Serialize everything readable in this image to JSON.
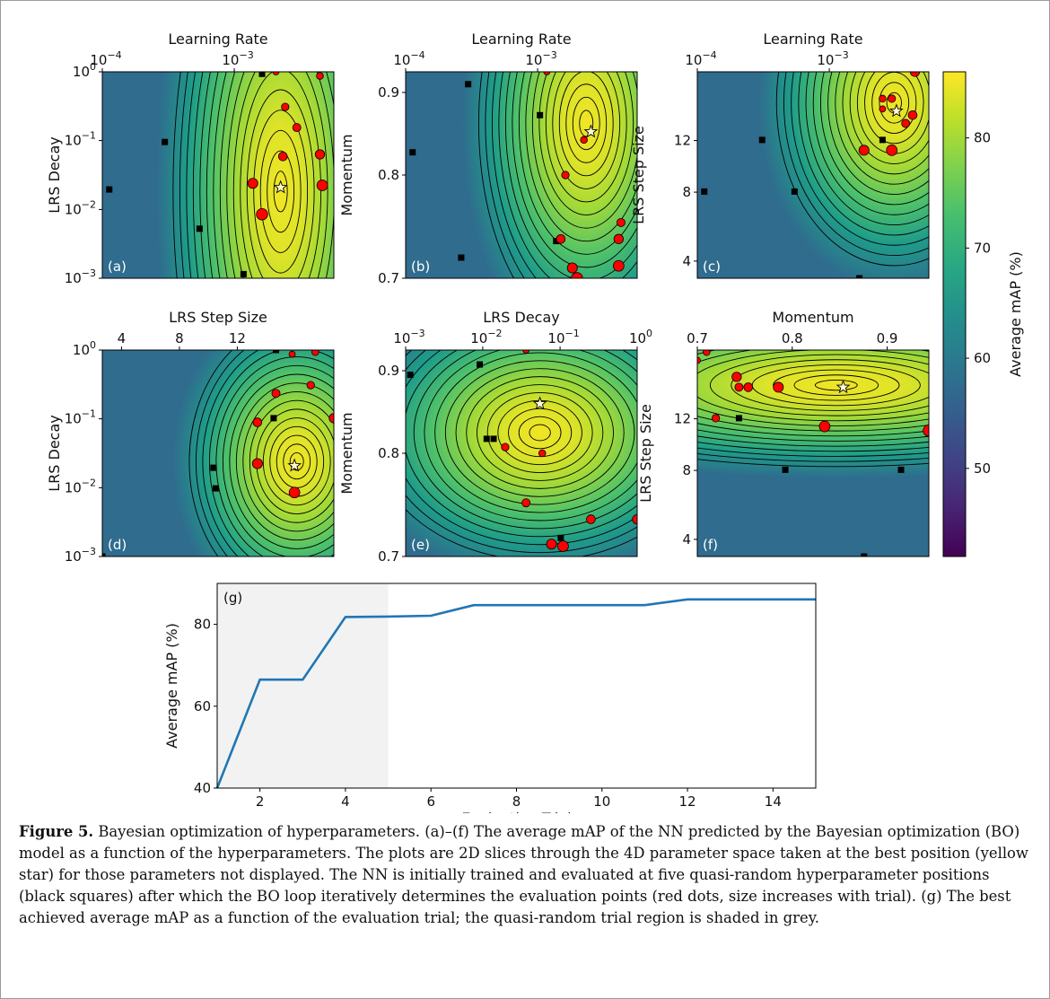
{
  "colors": {
    "low": "#440154",
    "mid": "#21918c",
    "high": "#fde725",
    "line": "#1f77b4",
    "shade": "#f2f2f2",
    "red": "#ff0000"
  },
  "colorbar": {
    "label": "Average mAP (%)",
    "ticks": [
      "50",
      "60",
      "70",
      "80"
    ],
    "values": [
      50,
      60,
      70,
      80
    ],
    "range": [
      42,
      86
    ]
  },
  "panels": [
    {
      "id": "a",
      "tag": "(a)",
      "top_label": "Learning Rate",
      "left_label": "LRS Decay",
      "top_ticks": [
        {
          "b": "10",
          "e": "−4",
          "v": 0
        },
        {
          "b": "10",
          "e": "−3",
          "v": 0.57
        }
      ],
      "left_ticks": [
        {
          "b": "10",
          "e": "0",
          "v": 1
        },
        {
          "b": "10",
          "e": "−1",
          "v": 0.667
        },
        {
          "b": "10",
          "e": "−2",
          "v": 0.333
        },
        {
          "b": "10",
          "e": "−3",
          "v": 0
        }
      ],
      "peak": [
        0.77,
        0.42
      ],
      "spread": [
        0.32,
        1.4
      ],
      "black": [
        [
          0.03,
          0.43
        ],
        [
          0.27,
          0.66
        ],
        [
          0.42,
          0.24
        ],
        [
          0.61,
          0.02
        ],
        [
          0.69,
          0.99
        ]
      ],
      "red": [
        [
          0.75,
          1.0
        ],
        [
          0.94,
          0.98
        ],
        [
          0.79,
          0.83
        ],
        [
          0.84,
          0.73
        ],
        [
          0.78,
          0.59
        ],
        [
          0.94,
          0.6
        ],
        [
          0.65,
          0.46
        ],
        [
          0.95,
          0.45
        ],
        [
          0.69,
          0.31
        ]
      ],
      "star": [
        0.77,
        0.44
      ]
    },
    {
      "id": "b",
      "tag": "(b)",
      "top_label": "Learning Rate",
      "left_label": "Momentum",
      "top_ticks": [
        {
          "b": "10",
          "e": "−4",
          "v": 0
        },
        {
          "b": "10",
          "e": "−3",
          "v": 0.57
        }
      ],
      "left_ticks": [
        {
          "t": "0.9",
          "v": 0.9
        },
        {
          "t": "0.8",
          "v": 0.5
        },
        {
          "t": "0.7",
          "v": 0
        }
      ],
      "peak": [
        0.78,
        0.75
      ],
      "spread": [
        0.32,
        0.9
      ],
      "black": [
        [
          0.03,
          0.61
        ],
        [
          0.27,
          0.94
        ],
        [
          0.58,
          0.79
        ],
        [
          0.24,
          0.1
        ],
        [
          0.65,
          0.18
        ]
      ],
      "red": [
        [
          0.61,
          1.0
        ],
        [
          0.77,
          0.67
        ],
        [
          0.69,
          0.5
        ],
        [
          0.93,
          0.27
        ],
        [
          0.67,
          0.19
        ],
        [
          0.92,
          0.19
        ],
        [
          0.72,
          0.05
        ],
        [
          0.92,
          0.06
        ],
        [
          0.74,
          0.0
        ]
      ],
      "star": [
        0.8,
        0.71
      ]
    },
    {
      "id": "c",
      "tag": "(c)",
      "top_label": "Learning Rate",
      "left_label": "LRS Step Size",
      "top_ticks": [
        {
          "b": "10",
          "e": "−4",
          "v": 0
        },
        {
          "b": "10",
          "e": "−3",
          "v": 0.57
        }
      ],
      "left_ticks": [
        {
          "t": "12",
          "v": 0.667
        },
        {
          "t": "8",
          "v": 0.417
        },
        {
          "t": "4",
          "v": 0.083
        }
      ],
      "peak": [
        0.85,
        0.85
      ],
      "spread": [
        0.35,
        0.7
      ],
      "black": [
        [
          0.03,
          0.42
        ],
        [
          0.28,
          0.67
        ],
        [
          0.42,
          0.42
        ],
        [
          0.8,
          0.67
        ],
        [
          0.7,
          0.0
        ]
      ],
      "red": [
        [
          0.8,
          0.82
        ],
        [
          0.8,
          0.87
        ],
        [
          0.84,
          0.87
        ],
        [
          0.9,
          0.75
        ],
        [
          0.93,
          0.79
        ],
        [
          0.94,
          1.0
        ],
        [
          0.72,
          0.62
        ],
        [
          0.84,
          0.62
        ]
      ],
      "star": [
        0.86,
        0.81
      ]
    },
    {
      "id": "d",
      "tag": "(d)",
      "top_label": "LRS Step Size",
      "left_label": "LRS Decay",
      "top_ticks": [
        {
          "t": "4",
          "v": 0.083
        },
        {
          "t": "8",
          "v": 0.333
        },
        {
          "t": "12",
          "v": 0.583
        }
      ],
      "left_ticks": [
        {
          "b": "10",
          "e": "0",
          "v": 1
        },
        {
          "b": "10",
          "e": "−1",
          "v": 0.667
        },
        {
          "b": "10",
          "e": "−2",
          "v": 0.333
        },
        {
          "b": "10",
          "e": "−3",
          "v": 0
        }
      ],
      "peak": [
        0.84,
        0.46
      ],
      "spread": [
        0.32,
        0.6
      ],
      "black": [
        [
          0.0,
          0.0
        ],
        [
          0.49,
          0.33
        ],
        [
          0.48,
          0.43
        ],
        [
          0.74,
          0.67
        ],
        [
          0.75,
          1.0
        ]
      ],
      "red": [
        [
          0.82,
          0.98
        ],
        [
          0.92,
          0.99
        ],
        [
          0.9,
          0.83
        ],
        [
          0.75,
          0.79
        ],
        [
          0.67,
          0.65
        ],
        [
          1.0,
          0.67
        ],
        [
          0.67,
          0.45
        ],
        [
          0.83,
          0.31
        ]
      ],
      "star": [
        0.83,
        0.44
      ]
    },
    {
      "id": "e",
      "tag": "(e)",
      "top_label": "LRS Decay",
      "left_label": "Momentum",
      "top_ticks": [
        {
          "b": "10",
          "e": "−3",
          "v": 0
        },
        {
          "b": "10",
          "e": "−2",
          "v": 0.333
        },
        {
          "b": "10",
          "e": "−1",
          "v": 0.667
        },
        {
          "b": "10",
          "e": "0",
          "v": 1
        }
      ],
      "left_ticks": [
        {
          "t": "0.9",
          "v": 0.9
        },
        {
          "t": "0.8",
          "v": 0.5
        },
        {
          "t": "0.7",
          "v": 0
        }
      ],
      "peak": [
        0.58,
        0.6
      ],
      "spread": [
        0.5,
        0.55
      ],
      "black": [
        [
          0.02,
          0.88
        ],
        [
          0.32,
          0.93
        ],
        [
          0.35,
          0.57
        ],
        [
          0.67,
          0.09
        ],
        [
          0.38,
          0.57
        ]
      ],
      "red": [
        [
          0.52,
          1.0
        ],
        [
          0.59,
          0.5
        ],
        [
          0.43,
          0.53
        ],
        [
          0.52,
          0.26
        ],
        [
          0.8,
          0.18
        ],
        [
          1.0,
          0.18
        ],
        [
          0.63,
          0.06
        ],
        [
          0.68,
          0.05
        ]
      ],
      "star": [
        0.58,
        0.74
      ]
    },
    {
      "id": "f",
      "tag": "(f)",
      "top_label": "Momentum",
      "left_label": "LRS Step Size",
      "top_ticks": [
        {
          "t": "0.7",
          "v": 0
        },
        {
          "t": "0.8",
          "v": 0.41
        },
        {
          "t": "0.9",
          "v": 0.82
        }
      ],
      "left_ticks": [
        {
          "t": "12",
          "v": 0.667
        },
        {
          "t": "8",
          "v": 0.417
        },
        {
          "t": "4",
          "v": 0.083
        }
      ],
      "peak": [
        0.6,
        0.83
      ],
      "spread": [
        1.0,
        0.35
      ],
      "black": [
        [
          0.08,
          0.67
        ],
        [
          0.18,
          0.67
        ],
        [
          0.38,
          0.42
        ],
        [
          0.88,
          0.42
        ],
        [
          0.72,
          0.0
        ]
      ],
      "red": [
        [
          0.0,
          0.95
        ],
        [
          0.04,
          0.99
        ],
        [
          0.08,
          0.67
        ],
        [
          0.18,
          0.82
        ],
        [
          0.22,
          0.82
        ],
        [
          0.17,
          0.87
        ],
        [
          0.35,
          0.82
        ],
        [
          0.55,
          0.63
        ],
        [
          1.0,
          0.61
        ]
      ],
      "star": [
        0.63,
        0.82
      ]
    }
  ],
  "chart_data": {
    "type": "line",
    "tag": "(g)",
    "xlabel": "Evaluation Trial",
    "ylabel": "Average mAP (%)",
    "xlim": [
      1,
      15
    ],
    "ylim": [
      40,
      90
    ],
    "xticks": [
      2,
      4,
      6,
      8,
      10,
      12,
      14
    ],
    "yticks": [
      40,
      60,
      80
    ],
    "shaded_region": [
      1,
      5
    ],
    "x": [
      1,
      2,
      3,
      4,
      5,
      6,
      7,
      8,
      9,
      10,
      11,
      12,
      13,
      14,
      15
    ],
    "y": [
      40,
      66.5,
      66.5,
      81.8,
      81.9,
      82.1,
      84.7,
      84.7,
      84.7,
      84.7,
      84.7,
      86.1,
      86.1,
      86.1,
      86.1
    ]
  },
  "caption": {
    "label": "Figure 5.",
    "text": " Bayesian optimization of hyperparameters. (a)–(f) The average mAP of the NN predicted by the Bayesian optimization (BO) model as a function of the hyperparameters. The plots are 2D slices through the 4D parameter space taken at the best position (yellow star) for those parameters not displayed. The NN is initially trained and evaluated at five quasi-random hyperparameter positions (black squares) after which the BO loop iteratively determines the evaluation points (red dots, size increases with trial). (g) The best achieved average mAP as a function of the evaluation trial; the quasi-random trial region is shaded in grey."
  }
}
